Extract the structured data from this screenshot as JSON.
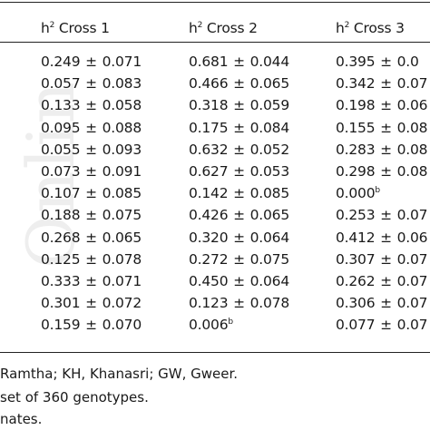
{
  "watermark": "Onlin",
  "headers": [
    {
      "base": "h",
      "sup": "2",
      "rest": " Cross 1"
    },
    {
      "base": "h",
      "sup": "2",
      "rest": " Cross 2"
    },
    {
      "base": "h",
      "sup": "2",
      "rest": " Cross 3"
    }
  ],
  "rows": [
    [
      {
        "v": "0.249",
        "e": "0.071"
      },
      {
        "v": "0.681",
        "e": "0.044"
      },
      {
        "v": "0.395",
        "e": "0.0"
      }
    ],
    [
      {
        "v": "0.057",
        "e": "0.083"
      },
      {
        "v": "0.466",
        "e": "0.065"
      },
      {
        "v": "0.342",
        "e": "0.07"
      }
    ],
    [
      {
        "v": "0.133",
        "e": "0.058"
      },
      {
        "v": "0.318",
        "e": "0.059"
      },
      {
        "v": "0.198",
        "e": "0.06"
      }
    ],
    [
      {
        "v": "0.095",
        "e": "0.088"
      },
      {
        "v": "0.175",
        "e": "0.084"
      },
      {
        "v": "0.155",
        "e": "0.08"
      }
    ],
    [
      {
        "v": "0.055",
        "e": "0.093"
      },
      {
        "v": "0.632",
        "e": "0.052"
      },
      {
        "v": "0.283",
        "e": "0.08"
      }
    ],
    [
      {
        "v": "0.073",
        "e": "0.091"
      },
      {
        "v": "0.627",
        "e": "0.053"
      },
      {
        "v": "0.298",
        "e": "0.08"
      }
    ],
    [
      {
        "v": "0.107",
        "e": "0.085"
      },
      {
        "v": "0.142",
        "e": "0.085"
      },
      {
        "v": "0.000",
        "sup": "b"
      }
    ],
    [
      {
        "v": "0.188",
        "e": "0.075"
      },
      {
        "v": "0.426",
        "e": "0.065"
      },
      {
        "v": "0.253",
        "e": "0.07"
      }
    ],
    [
      {
        "v": "0.268",
        "e": "0.065"
      },
      {
        "v": "0.320",
        "e": "0.064"
      },
      {
        "v": "0.412",
        "e": "0.06"
      }
    ],
    [
      {
        "v": "0.125",
        "e": "0.078"
      },
      {
        "v": "0.272",
        "e": "0.075"
      },
      {
        "v": "0.307",
        "e": "0.07"
      }
    ],
    [
      {
        "v": "0.333",
        "e": "0.071"
      },
      {
        "v": "0.450",
        "e": "0.064"
      },
      {
        "v": "0.262",
        "e": "0.07"
      }
    ],
    [
      {
        "v": "0.301",
        "e": "0.072"
      },
      {
        "v": "0.123",
        "e": "0.078"
      },
      {
        "v": "0.306",
        "e": "0.07"
      }
    ],
    [
      {
        "v": "0.159",
        "e": "0.070"
      },
      {
        "v": "0.006",
        "sup": "b"
      },
      {
        "v": "0.077",
        "e": "0.07"
      }
    ]
  ],
  "footnotes": [
    "Ramtha; KH, Khanasri; GW, Gweer.",
    "set of 360 genotypes.",
    "nates."
  ],
  "pm_symbol": "±"
}
